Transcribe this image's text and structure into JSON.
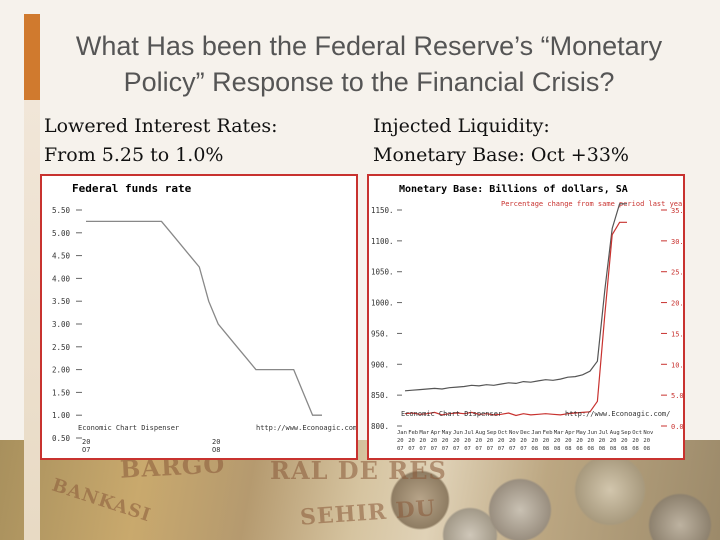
{
  "slide": {
    "title_line1": "What Has been the Federal Reserve’s “Monetary",
    "title_line2": "Policy” Response to the Financial Crisis?",
    "left_heading_line1": "Lowered Interest Rates:",
    "left_heading_line2": "From 5.25 to 1.0%",
    "right_heading_line1": "Injected Liquidity:",
    "right_heading_line2": "Monetary Base: Oct +33%"
  },
  "background": {
    "banknote_text_1": "BARGO",
    "banknote_text_2": "RAL DE RES",
    "banknote_text_3": "BANKASI",
    "banknote_text_4": "SEHIR DU"
  },
  "chart_data": [
    {
      "type": "line",
      "title": "Federal funds rate",
      "ylim": [
        0.5,
        5.5
      ],
      "yticks": [
        "5.50",
        "5.00",
        "4.50",
        "4.00",
        "3.50",
        "3.00",
        "2.50",
        "2.00",
        "1.50",
        "1.00",
        "0.50"
      ],
      "xticks": [
        "20\nO7",
        "20\nO8"
      ],
      "x": [
        0,
        10,
        20,
        30,
        40,
        50,
        55,
        60,
        70,
        80,
        90,
        100,
        110,
        120,
        130,
        140,
        150,
        160,
        170,
        180,
        190,
        200,
        210,
        220,
        230,
        240,
        250
      ],
      "values": [
        5.25,
        5.25,
        5.25,
        5.25,
        5.25,
        5.25,
        5.25,
        5.25,
        5.25,
        5.25,
        5.0,
        4.75,
        4.5,
        4.25,
        3.5,
        3.0,
        2.75,
        2.5,
        2.25,
        2.0,
        2.0,
        2.0,
        2.0,
        2.0,
        1.5,
        1.0,
        1.0
      ],
      "footer_left": "Economic Chart Dispenser",
      "footer_right": "http://www.Econoagic.com/"
    },
    {
      "type": "line",
      "title": "Monetary Base: Billions of dollars, SA",
      "series": [
        {
          "name": "",
          "values": [
            857,
            858,
            859,
            860,
            861,
            860,
            862,
            863,
            864,
            866,
            865,
            867,
            866,
            868,
            870,
            869,
            872,
            871,
            873,
            875,
            874,
            876,
            879,
            880,
            883,
            889,
            905,
            1020,
            1120,
            1160,
            1160
          ]
        },
        {
          "name": "Percentage change from same period last year",
          "values": [
            2.0,
            2.1,
            1.9,
            2.0,
            2.2,
            1.8,
            2.0,
            2.1,
            2.0,
            2.2,
            1.9,
            2.0,
            1.8,
            1.9,
            2.1,
            1.7,
            2.0,
            1.8,
            1.9,
            2.0,
            1.9,
            1.8,
            2.0,
            2.1,
            2.2,
            2.3,
            4.0,
            18.0,
            31.0,
            33.0,
            33.0
          ]
        }
      ],
      "left_yticks": [
        "1150.",
        "1100.",
        "1050.",
        "1000.",
        "950.",
        "900.",
        "850.",
        "800."
      ],
      "right_yticks": [
        "35.0",
        "30.0",
        "25.0",
        "20.0",
        "15.0",
        "10.0",
        "5.0",
        "0.0"
      ],
      "xticks_top": [
        "Jan",
        "Feb",
        "Mar",
        "Apr",
        "May",
        "Jun",
        "Jul",
        "Aug",
        "Sep",
        "Oct",
        "Nov",
        "Dec",
        "Jan",
        "Feb",
        "Mar",
        "Apr",
        "May",
        "Jun",
        "Jul",
        "Aug",
        "Sep",
        "Oct",
        "Nov"
      ],
      "xticks_mid": [
        "20",
        "20",
        "20",
        "20",
        "20",
        "20",
        "20",
        "20",
        "20",
        "20",
        "20",
        "20",
        "20",
        "20",
        "20",
        "20",
        "20",
        "20",
        "20",
        "20",
        "20",
        "20",
        "20"
      ],
      "xticks_bot": [
        "07",
        "07",
        "07",
        "07",
        "07",
        "07",
        "07",
        "07",
        "07",
        "07",
        "07",
        "07",
        "08",
        "08",
        "08",
        "08",
        "08",
        "08",
        "08",
        "08",
        "08",
        "08",
        "08"
      ],
      "footer_left": "Economic Chart Dispenser",
      "footer_right": "http://www.Econoagic.com/"
    }
  ]
}
